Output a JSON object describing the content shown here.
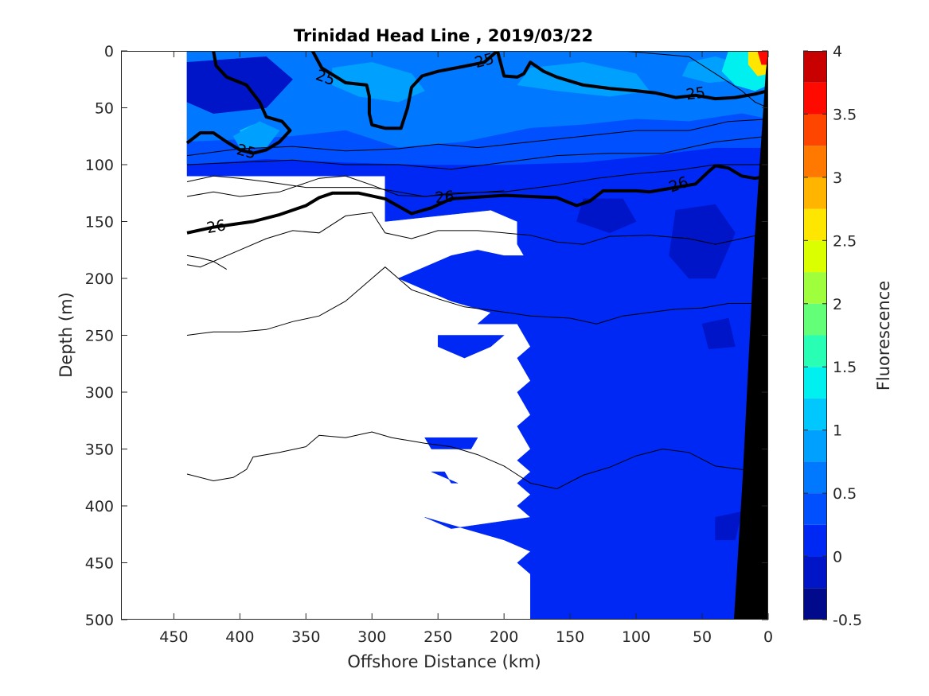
{
  "chart_data": {
    "type": "heatmap",
    "title": "Trinidad Head Line , 2019/03/22",
    "xlabel": "Offshore Distance (km)",
    "ylabel": "Depth (m)",
    "xlim": [
      490,
      0
    ],
    "ylim": [
      500,
      0
    ],
    "x_reversed": true,
    "y_reversed": true,
    "xticks": [
      450,
      400,
      350,
      300,
      250,
      200,
      150,
      100,
      50,
      0
    ],
    "yticks": [
      0,
      50,
      100,
      150,
      200,
      250,
      300,
      350,
      400,
      450,
      500
    ],
    "colorbar": {
      "label": "Fluorescence",
      "range": [
        -0.5,
        4
      ],
      "ticks": [
        "4",
        "3.5",
        "3",
        "2.5",
        "2",
        "1.5",
        "1",
        "0.5",
        "0",
        "-0.5"
      ],
      "levels": [
        {
          "from": -0.5,
          "to": -0.25,
          "color": "#000a8a"
        },
        {
          "from": -0.25,
          "to": 0,
          "color": "#0014c8"
        },
        {
          "from": 0,
          "to": 0.25,
          "color": "#0028f5"
        },
        {
          "from": 0.25,
          "to": 0.5,
          "color": "#0050ff"
        },
        {
          "from": 0.5,
          "to": 0.75,
          "color": "#0078ff"
        },
        {
          "from": 0.75,
          "to": 1,
          "color": "#00a0ff"
        },
        {
          "from": 1,
          "to": 1.25,
          "color": "#00c8ff"
        },
        {
          "from": 1.25,
          "to": 1.5,
          "color": "#00f0f0"
        },
        {
          "from": 1.5,
          "to": 1.75,
          "color": "#28ffb4"
        },
        {
          "from": 1.75,
          "to": 2,
          "color": "#64ff78"
        },
        {
          "from": 2,
          "to": 2.25,
          "color": "#a0ff3c"
        },
        {
          "from": 2.25,
          "to": 2.5,
          "color": "#dcff00"
        },
        {
          "from": 2.5,
          "to": 2.75,
          "color": "#ffe600"
        },
        {
          "from": 2.75,
          "to": 3,
          "color": "#ffb400"
        },
        {
          "from": 3,
          "to": 3.25,
          "color": "#ff7800"
        },
        {
          "from": 3.25,
          "to": 3.5,
          "color": "#ff4600"
        },
        {
          "from": 3.5,
          "to": 3.75,
          "color": "#ff0a00"
        },
        {
          "from": 3.75,
          "to": 4,
          "color": "#c80000"
        },
        {
          "from": 4,
          "to": 4.25,
          "color": "#960000"
        }
      ]
    },
    "isopycnals": [
      {
        "value": 25,
        "label": "25",
        "bold": true,
        "points": [
          [
            440,
            81
          ],
          [
            430,
            72
          ],
          [
            420,
            72
          ],
          [
            410,
            80
          ],
          [
            400,
            87
          ],
          [
            390,
            90
          ],
          [
            380,
            87
          ],
          [
            370,
            80
          ],
          [
            362,
            70
          ],
          [
            368,
            62
          ],
          [
            380,
            58
          ],
          [
            385,
            45
          ],
          [
            395,
            30
          ],
          [
            410,
            23
          ],
          [
            418,
            13
          ],
          [
            420,
            0
          ]
        ]
      },
      {
        "value": 25,
        "label": "25",
        "bold": true,
        "points": [
          [
            345,
            0
          ],
          [
            338,
            15
          ],
          [
            320,
            28
          ],
          [
            304,
            30
          ],
          [
            302,
            40
          ],
          [
            302,
            55
          ],
          [
            300,
            65
          ],
          [
            290,
            68
          ],
          [
            278,
            68
          ],
          [
            273,
            50
          ],
          [
            270,
            32
          ],
          [
            262,
            22
          ],
          [
            250,
            18
          ],
          [
            232,
            14
          ],
          [
            215,
            10
          ],
          [
            205,
            0
          ],
          [
            200,
            22
          ],
          [
            190,
            23
          ],
          [
            185,
            20
          ],
          [
            180,
            10
          ],
          [
            170,
            18
          ],
          [
            160,
            23
          ],
          [
            140,
            30
          ],
          [
            120,
            33
          ],
          [
            100,
            35
          ],
          [
            85,
            37
          ],
          [
            70,
            41
          ],
          [
            55,
            39
          ],
          [
            40,
            42
          ],
          [
            25,
            41
          ],
          [
            10,
            38
          ],
          [
            0,
            35
          ]
        ]
      },
      {
        "value": 26,
        "label": "26",
        "bold": true,
        "points": [
          [
            440,
            160
          ],
          [
            420,
            155
          ],
          [
            390,
            150
          ],
          [
            370,
            144
          ],
          [
            350,
            136
          ],
          [
            340,
            129
          ],
          [
            330,
            125
          ],
          [
            310,
            125
          ],
          [
            290,
            130
          ],
          [
            270,
            143
          ],
          [
            255,
            138
          ],
          [
            240,
            130
          ],
          [
            200,
            127
          ],
          [
            160,
            129
          ],
          [
            145,
            136
          ],
          [
            135,
            132
          ],
          [
            125,
            123
          ],
          [
            100,
            123
          ],
          [
            90,
            124
          ],
          [
            70,
            120
          ],
          [
            55,
            117
          ],
          [
            45,
            106
          ],
          [
            40,
            101
          ],
          [
            30,
            103
          ],
          [
            20,
            110
          ],
          [
            10,
            112
          ],
          [
            0,
            110
          ]
        ]
      }
    ]
  }
}
